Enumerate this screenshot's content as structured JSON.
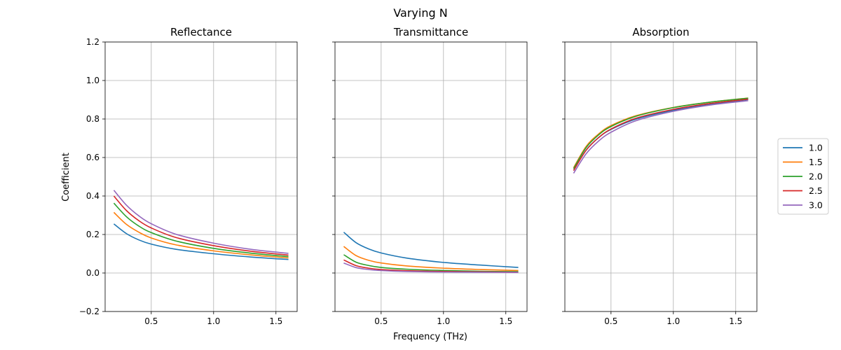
{
  "suptitle": "Varying N",
  "xlabel": "Frequency (THz)",
  "ylabel": "Coefficient",
  "legend": {
    "placement": "center-right, outside",
    "entries": [
      "1.0",
      "1.5",
      "2.0",
      "2.5",
      "3.0"
    ]
  },
  "colors": [
    "#1f77b4",
    "#ff7f0e",
    "#2ca02c",
    "#d62728",
    "#9467bd"
  ],
  "chart_data": [
    {
      "type": "line",
      "title": "Reflectance",
      "xlim": [
        0.13,
        1.67
      ],
      "ylim": [
        -0.2,
        1.2
      ],
      "xticks": [
        0.5,
        1.0,
        1.5
      ],
      "xtick_labels": [
        "0.5",
        "1.0",
        "1.5"
      ],
      "yticks": [
        -0.2,
        0.0,
        0.2,
        0.4,
        0.6,
        0.8,
        1.0,
        1.2
      ],
      "ytick_labels": [
        "−0.2",
        "0.0",
        "0.2",
        "0.4",
        "0.6",
        "0.8",
        "1.0",
        "1.2"
      ],
      "grid": true,
      "x": [
        0.2,
        0.3,
        0.4,
        0.5,
        0.7,
        1.0,
        1.3,
        1.6
      ],
      "series": [
        {
          "name": "1.0",
          "values": [
            0.255,
            0.205,
            0.172,
            0.15,
            0.123,
            0.1,
            0.083,
            0.07
          ]
        },
        {
          "name": "1.5",
          "values": [
            0.315,
            0.253,
            0.212,
            0.182,
            0.146,
            0.115,
            0.094,
            0.078
          ]
        },
        {
          "name": "2.0",
          "values": [
            0.363,
            0.293,
            0.244,
            0.21,
            0.166,
            0.128,
            0.103,
            0.085
          ]
        },
        {
          "name": "2.5",
          "values": [
            0.4,
            0.325,
            0.272,
            0.234,
            0.184,
            0.142,
            0.113,
            0.093
          ]
        },
        {
          "name": "3.0",
          "values": [
            0.43,
            0.353,
            0.297,
            0.256,
            0.201,
            0.155,
            0.123,
            0.102
          ]
        }
      ]
    },
    {
      "type": "line",
      "title": "Transmittance",
      "xlim": [
        0.13,
        1.67
      ],
      "ylim": [
        -0.2,
        1.2
      ],
      "xticks": [
        0.5,
        1.0,
        1.5
      ],
      "xtick_labels": [
        "0.5",
        "1.0",
        "1.5"
      ],
      "yticks": [
        -0.2,
        0.0,
        0.2,
        0.4,
        0.6,
        0.8,
        1.0,
        1.2
      ],
      "ytick_labels": [],
      "grid": true,
      "x": [
        0.2,
        0.3,
        0.4,
        0.5,
        0.7,
        1.0,
        1.3,
        1.6
      ],
      "series": [
        {
          "name": "1.0",
          "values": [
            0.212,
            0.157,
            0.125,
            0.104,
            0.078,
            0.055,
            0.041,
            0.029
          ]
        },
        {
          "name": "1.5",
          "values": [
            0.138,
            0.09,
            0.066,
            0.052,
            0.037,
            0.025,
            0.018,
            0.013
          ]
        },
        {
          "name": "2.0",
          "values": [
            0.095,
            0.056,
            0.039,
            0.029,
            0.02,
            0.013,
            0.009,
            0.007
          ]
        },
        {
          "name": "2.5",
          "values": [
            0.068,
            0.038,
            0.025,
            0.018,
            0.012,
            0.008,
            0.006,
            0.004
          ]
        },
        {
          "name": "3.0",
          "values": [
            0.052,
            0.028,
            0.018,
            0.013,
            0.008,
            0.005,
            0.004,
            0.003
          ]
        }
      ]
    },
    {
      "type": "line",
      "title": "Absorption",
      "xlim": [
        0.13,
        1.67
      ],
      "ylim": [
        -0.2,
        1.2
      ],
      "xticks": [
        0.5,
        1.0,
        1.5
      ],
      "xtick_labels": [
        "0.5",
        "1.0",
        "1.5"
      ],
      "yticks": [
        -0.2,
        0.0,
        0.2,
        0.4,
        0.6,
        0.8,
        1.0,
        1.2
      ],
      "ytick_labels": [],
      "grid": true,
      "x": [
        0.2,
        0.3,
        0.4,
        0.5,
        0.7,
        1.0,
        1.3,
        1.6
      ],
      "series": [
        {
          "name": "1.0",
          "values": [
            0.533,
            0.638,
            0.703,
            0.746,
            0.799,
            0.845,
            0.876,
            0.901
          ]
        },
        {
          "name": "1.5",
          "values": [
            0.547,
            0.657,
            0.722,
            0.766,
            0.817,
            0.86,
            0.888,
            0.909
          ]
        },
        {
          "name": "2.0",
          "values": [
            0.542,
            0.651,
            0.717,
            0.761,
            0.814,
            0.859,
            0.888,
            0.908
          ]
        },
        {
          "name": "2.5",
          "values": [
            0.532,
            0.637,
            0.703,
            0.748,
            0.804,
            0.85,
            0.881,
            0.903
          ]
        },
        {
          "name": "3.0",
          "values": [
            0.518,
            0.619,
            0.685,
            0.731,
            0.791,
            0.84,
            0.873,
            0.895
          ]
        }
      ]
    }
  ]
}
